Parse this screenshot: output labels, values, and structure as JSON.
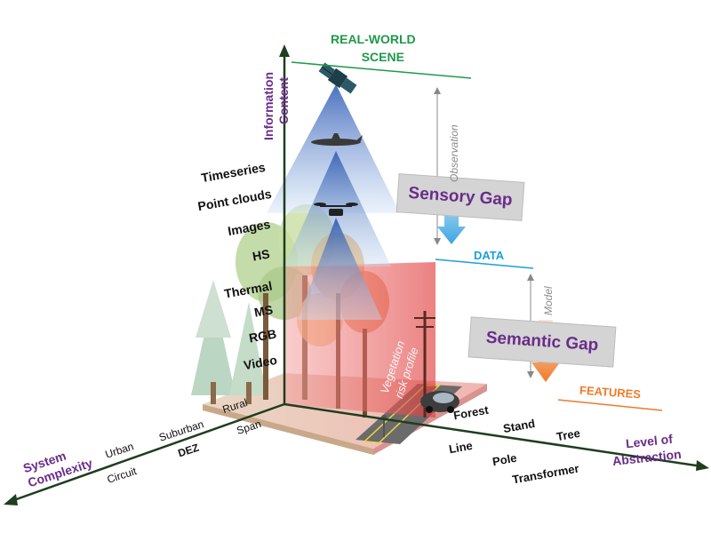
{
  "top_label": {
    "line1": "REAL-WORLD",
    "line2": "SCENE"
  },
  "y_axis": {
    "title_line1": "Information",
    "title_line2": "Content"
  },
  "data_types": [
    "Timeseries",
    "Point clouds",
    "Images",
    "HS",
    "Thermal",
    "MS",
    "RGB",
    "Video"
  ],
  "observation_label": "Observation",
  "sensory_gap": "Sensory Gap",
  "data_label": "DATA",
  "model_label": "Model",
  "semantic_gap": "Semantic Gap",
  "features_label": "FEATURES",
  "vegetation_label": {
    "line1": "Vegetation",
    "line2": "risk profile"
  },
  "left_axis": {
    "title_line1": "System",
    "title_line2": "Complexity",
    "upper": [
      "Urban",
      "Suburban",
      "Rural"
    ],
    "lower": [
      "Circuit",
      "DEZ",
      "Span"
    ]
  },
  "right_axis": {
    "title_line1": "Level of",
    "title_line2": "Abstraction",
    "upper": [
      "Forest",
      "Stand",
      "Tree"
    ],
    "lower": [
      "Line",
      "Pole",
      "Transformer"
    ]
  },
  "colors": {
    "axis": "#1f3d1f",
    "purple": "#6a2c8a",
    "green": "#1e9a4a",
    "cyan": "#1aa0d8",
    "orange": "#f07a28",
    "gap_box": "#d4d4d4"
  },
  "icons": [
    "satellite-icon",
    "airplane-icon",
    "drone-icon",
    "car-icon",
    "person-icon",
    "power-pole-icon"
  ]
}
